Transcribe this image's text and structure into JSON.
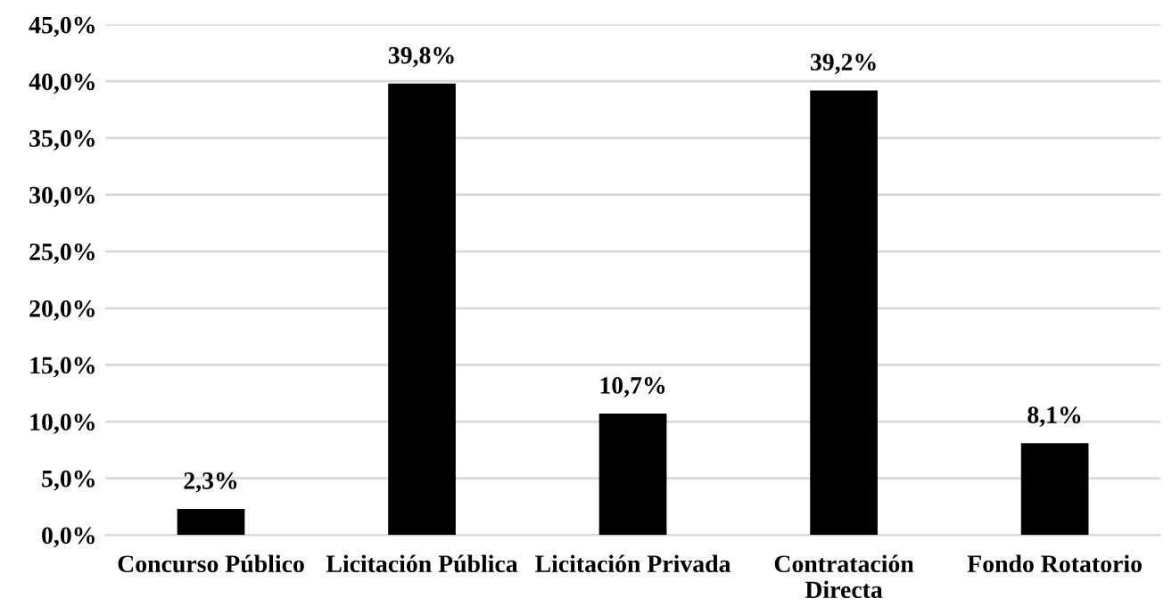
{
  "chart_data": {
    "type": "bar",
    "categories": [
      "Concurso Público",
      "Licitación Pública",
      "Licitación Privada",
      "Contratación\nDirecta",
      "Fondo Rotatorio"
    ],
    "values": [
      2.3,
      39.8,
      10.7,
      39.2,
      8.1
    ],
    "value_labels": [
      "2,3%",
      "39,8%",
      "10,7%",
      "39,2%",
      "8,1%"
    ],
    "color": "#000000",
    "ylim": [
      0,
      45
    ],
    "yticks": [
      {
        "value": 0,
        "label": "0,0%"
      },
      {
        "value": 5,
        "label": "5,0%"
      },
      {
        "value": 10,
        "label": "10,0%"
      },
      {
        "value": 15,
        "label": "15,0%"
      },
      {
        "value": 20,
        "label": "20,0%"
      },
      {
        "value": 25,
        "label": "25,0%"
      },
      {
        "value": 30,
        "label": "30,0%"
      },
      {
        "value": 35,
        "label": "35,0%"
      },
      {
        "value": 40,
        "label": "40,0%"
      },
      {
        "value": 45,
        "label": "45,0%"
      }
    ],
    "grid": "y"
  }
}
